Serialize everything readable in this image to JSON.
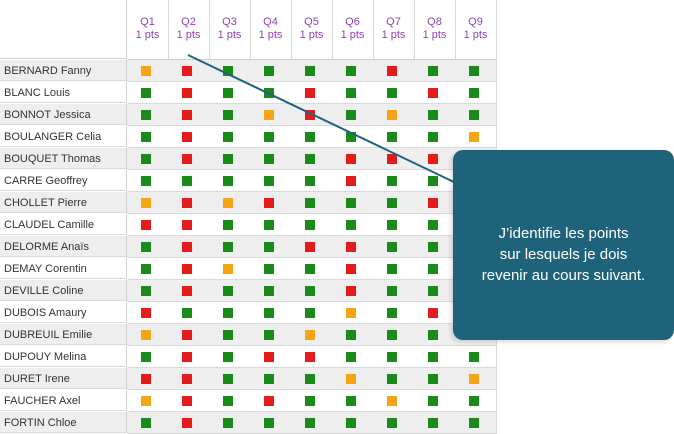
{
  "colors": {
    "green": "#1a8a1a",
    "red": "#e31b1b",
    "orange": "#f5a414",
    "header_text": "#8e44ad",
    "callout_bg": "#1f637b",
    "pointer_line": "#1f637b"
  },
  "questions": [
    {
      "label": "Q1",
      "points": "1 pts"
    },
    {
      "label": "Q2",
      "points": "1 pts"
    },
    {
      "label": "Q3",
      "points": "1 pts"
    },
    {
      "label": "Q4",
      "points": "1 pts"
    },
    {
      "label": "Q5",
      "points": "1 pts"
    },
    {
      "label": "Q6",
      "points": "1 pts"
    },
    {
      "label": "Q7",
      "points": "1 pts"
    },
    {
      "label": "Q8",
      "points": "1 pts"
    },
    {
      "label": "Q9",
      "points": "1 pts"
    }
  ],
  "students": [
    {
      "name": "BERNARD Fanny",
      "results": [
        "orange",
        "red",
        "green",
        "green",
        "green",
        "green",
        "red",
        "green",
        "green"
      ]
    },
    {
      "name": "BLANC Louis",
      "results": [
        "green",
        "red",
        "green",
        "green",
        "red",
        "green",
        "green",
        "red",
        "green"
      ]
    },
    {
      "name": "BONNOT Jessica",
      "results": [
        "green",
        "red",
        "green",
        "orange",
        "red",
        "green",
        "orange",
        "green",
        "green"
      ]
    },
    {
      "name": "BOULANGER Celia",
      "results": [
        "green",
        "red",
        "green",
        "green",
        "green",
        "green",
        "green",
        "green",
        "orange"
      ]
    },
    {
      "name": "BOUQUET Thomas",
      "results": [
        "green",
        "red",
        "green",
        "green",
        "green",
        "red",
        "red",
        "red",
        "green"
      ]
    },
    {
      "name": "CARRE Geoffrey",
      "results": [
        "green",
        "green",
        "green",
        "green",
        "green",
        "red",
        "green",
        "green",
        "green"
      ]
    },
    {
      "name": "CHOLLET Pierre",
      "results": [
        "orange",
        "red",
        "orange",
        "red",
        "green",
        "green",
        "green",
        "red",
        "green"
      ]
    },
    {
      "name": "CLAUDEL Camille",
      "results": [
        "red",
        "red",
        "green",
        "green",
        "green",
        "green",
        "green",
        "green",
        "green"
      ]
    },
    {
      "name": "DELORME Anaïs",
      "results": [
        "green",
        "red",
        "green",
        "green",
        "red",
        "red",
        "green",
        "green",
        "green"
      ]
    },
    {
      "name": "DEMAY Corentin",
      "results": [
        "green",
        "red",
        "orange",
        "green",
        "green",
        "red",
        "green",
        "green",
        "green"
      ]
    },
    {
      "name": "DEVILLE Coline",
      "results": [
        "green",
        "red",
        "green",
        "green",
        "green",
        "red",
        "green",
        "green",
        "green"
      ]
    },
    {
      "name": "DUBOIS Amaury",
      "results": [
        "red",
        "green",
        "green",
        "green",
        "green",
        "orange",
        "green",
        "red",
        "green"
      ]
    },
    {
      "name": "DUBREUIL Emilie",
      "results": [
        "orange",
        "red",
        "green",
        "green",
        "orange",
        "green",
        "green",
        "green",
        "green"
      ]
    },
    {
      "name": "DUPOUY Melina",
      "results": [
        "green",
        "red",
        "green",
        "red",
        "red",
        "green",
        "green",
        "green",
        "green"
      ]
    },
    {
      "name": "DURET Irene",
      "results": [
        "red",
        "red",
        "green",
        "green",
        "green",
        "orange",
        "green",
        "green",
        "orange"
      ]
    },
    {
      "name": "FAUCHER Axel",
      "results": [
        "orange",
        "red",
        "green",
        "red",
        "green",
        "green",
        "orange",
        "green",
        "green"
      ]
    },
    {
      "name": "FORTIN Chloe",
      "results": [
        "green",
        "red",
        "green",
        "green",
        "green",
        "green",
        "green",
        "green",
        "green"
      ]
    }
  ],
  "callout": {
    "line1": "J’identifie les points",
    "line2": "sur lesquels je dois",
    "line3": "revenir au cours suivant."
  }
}
